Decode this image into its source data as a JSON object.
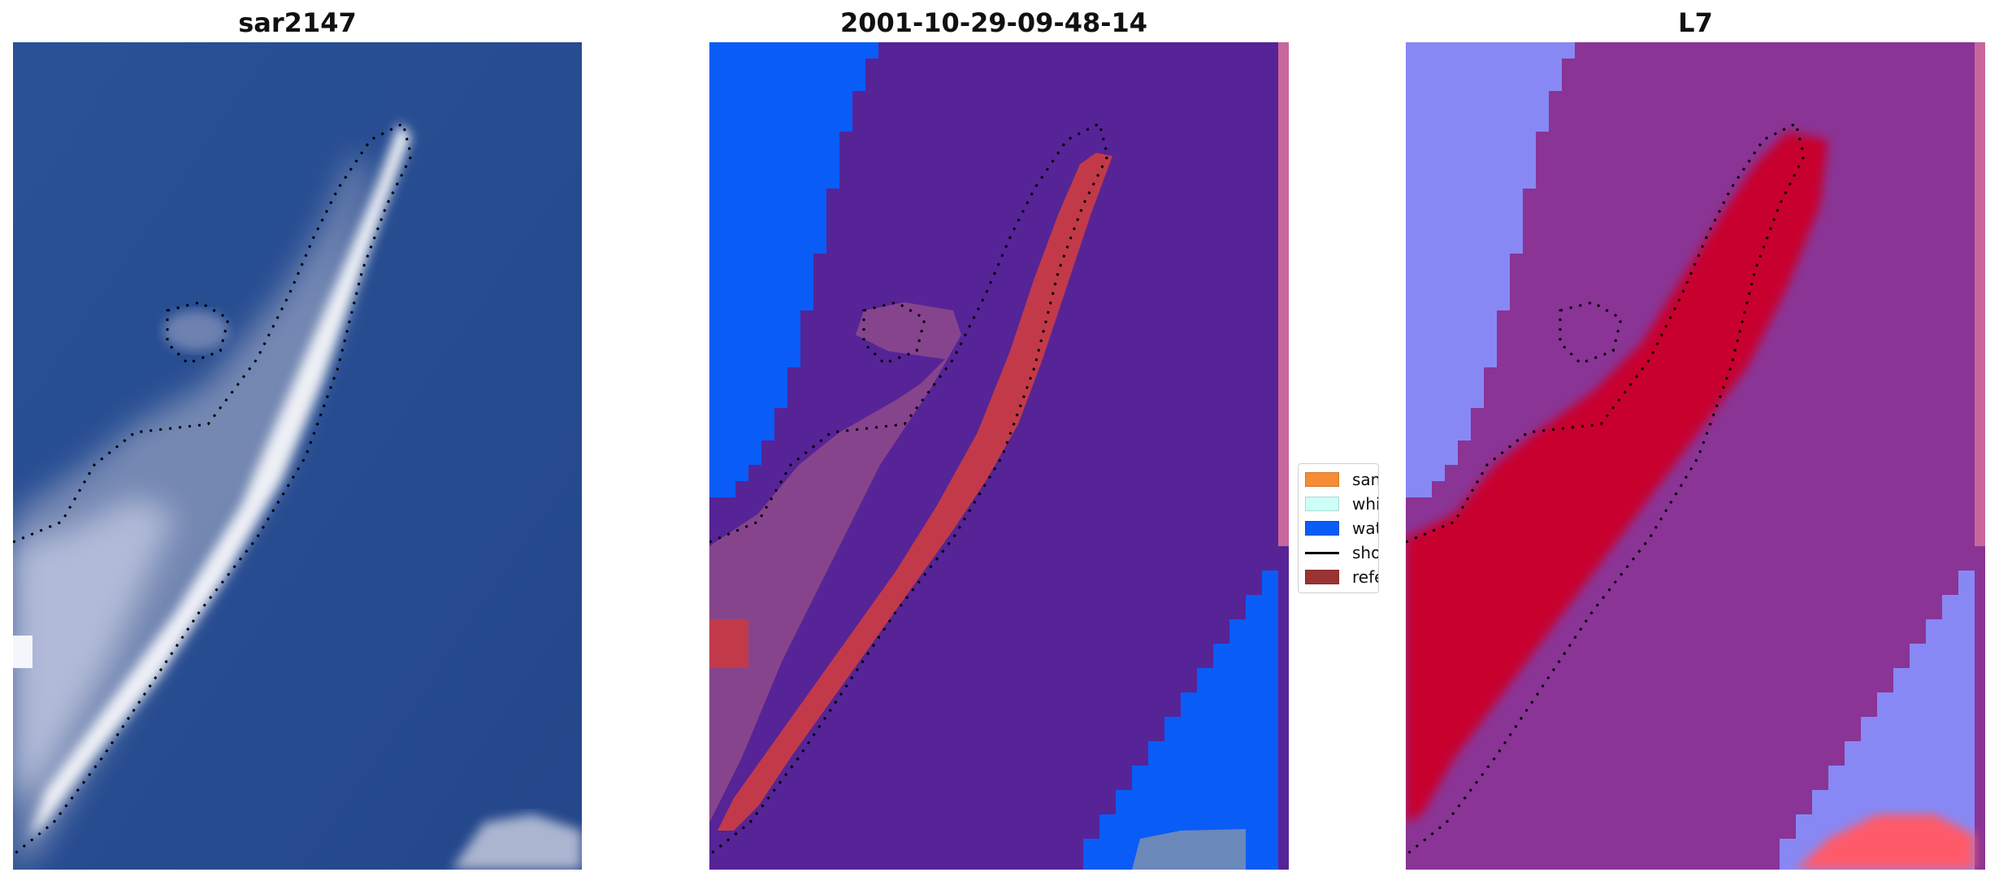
{
  "panels": [
    {
      "title": "sar2147"
    },
    {
      "title": "2001-10-29-09-48-14"
    },
    {
      "title": "L7"
    }
  ],
  "legend": [
    {
      "label": "sand",
      "color": "#f68c33",
      "kind": "patch"
    },
    {
      "label": "whitewater",
      "color": "#cdfff8",
      "kind": "patch"
    },
    {
      "label": "water",
      "color": "#0a5cf6",
      "kind": "patch"
    },
    {
      "label": "shoreline",
      "color": "#000000",
      "kind": "line"
    },
    {
      "label": "reference",
      "color": "#9b3333",
      "kind": "patch"
    }
  ],
  "colors": {
    "rgb_water": "#2a4f96",
    "rgb_sand": "#eef0f6",
    "class_background": "#562496",
    "class_water": "#0a5cf6",
    "class_sand_overlay": "#c23a4a",
    "prob_background": "#8a3496",
    "prob_water": "#8888f4",
    "prob_high": "#c8002e",
    "nodata_strip": "#c8679c"
  }
}
